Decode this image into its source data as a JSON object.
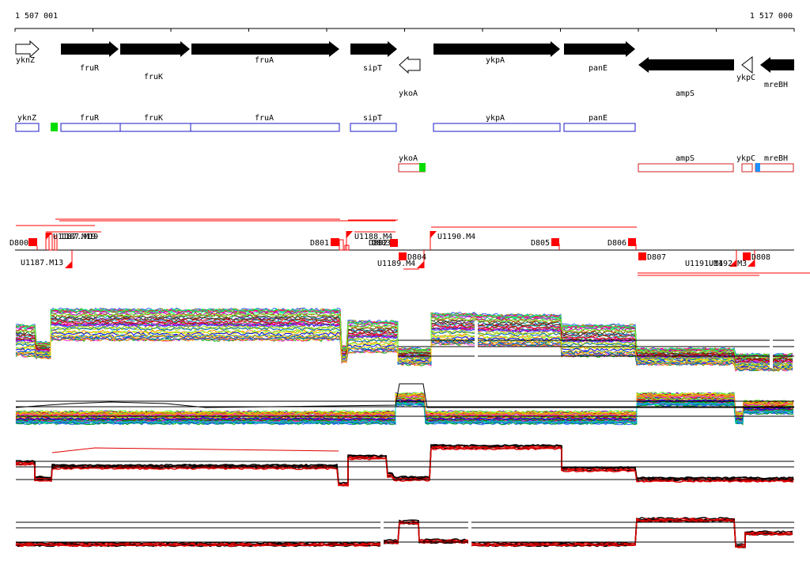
{
  "coordinates": {
    "start": "1 507 001",
    "end": "1 517 000"
  },
  "genes": [
    {
      "name": "yknZ",
      "strand": "+"
    },
    {
      "name": "fruR",
      "strand": "+"
    },
    {
      "name": "fruK",
      "strand": "+"
    },
    {
      "name": "fruA",
      "strand": "+"
    },
    {
      "name": "sipT",
      "strand": "+"
    },
    {
      "name": "ykoA",
      "strand": "-"
    },
    {
      "name": "ykpA",
      "strand": "+"
    },
    {
      "name": "panE",
      "strand": "+"
    },
    {
      "name": "ampS",
      "strand": "-"
    },
    {
      "name": "ykpC",
      "strand": "-"
    },
    {
      "name": "mreBH",
      "strand": "-"
    }
  ],
  "forward_boxes": [
    {
      "name": "yknZ"
    },
    {
      "name": "fruR"
    },
    {
      "name": "fruK"
    },
    {
      "name": "fruA"
    },
    {
      "name": "sipT"
    },
    {
      "name": "ykpA"
    },
    {
      "name": "panE"
    }
  ],
  "reverse_boxes": [
    {
      "name": "ykoA"
    },
    {
      "name": "ampS"
    },
    {
      "name": "ykpC"
    },
    {
      "name": "mreBH"
    }
  ],
  "upper_features": [
    {
      "label": "D800"
    },
    {
      "label": "U1187.M19"
    },
    {
      "label": "D801"
    },
    {
      "label": "U1188.M4"
    },
    {
      "label": "D802"
    },
    {
      "label": "U1190.M4"
    },
    {
      "label": "D805"
    },
    {
      "label": "D806"
    }
  ],
  "lower_features": [
    {
      "label": "U1187.M13"
    },
    {
      "label": "U1189.M4"
    },
    {
      "label": "D804"
    },
    {
      "label": "D807"
    },
    {
      "label": "U1191.M4"
    },
    {
      "label": "U1192.M3"
    },
    {
      "label": "D808"
    }
  ],
  "colors": {
    "gene_arrow": "#000000",
    "forward_box": "#1a1ac8",
    "reverse_box": "#d02020",
    "marker_green": "#00dd00",
    "marker_blue": "#1e90ff",
    "feature_red": "#ff0000",
    "track_black": "#000000",
    "track_red": "#e00000"
  }
}
